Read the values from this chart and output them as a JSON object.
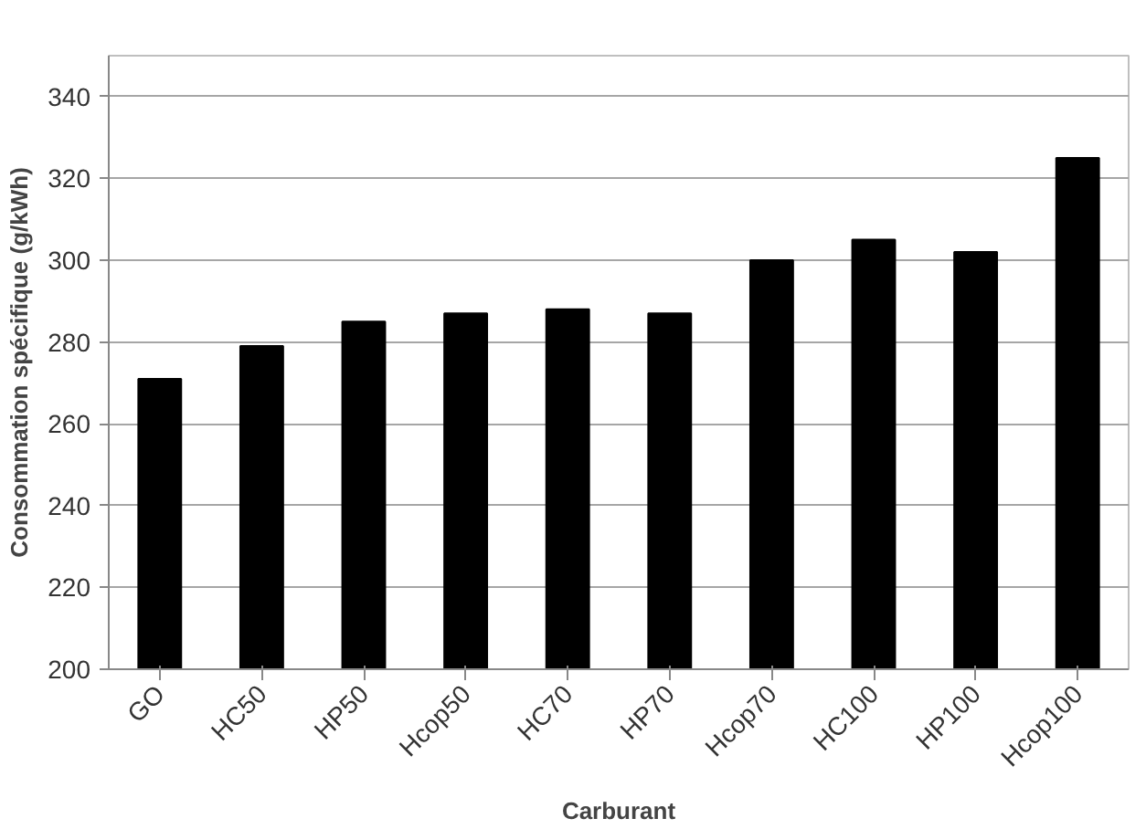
{
  "chart_data": {
    "type": "bar",
    "xlabel": "Carburant",
    "ylabel": "Consommation spécifique (g/kWh)",
    "categories": [
      "GO",
      "HC50",
      "HP50",
      "Hcop50",
      "HC70",
      "HP70",
      "Hcop70",
      "HC100",
      "HP100",
      "Hcop100"
    ],
    "values": [
      271,
      279,
      285,
      287,
      288,
      287,
      300,
      305,
      302,
      325
    ],
    "color": "#000000",
    "ylim": [
      200,
      350
    ],
    "yticks": [
      200,
      220,
      240,
      260,
      280,
      300,
      320,
      340
    ],
    "grid": "y"
  }
}
